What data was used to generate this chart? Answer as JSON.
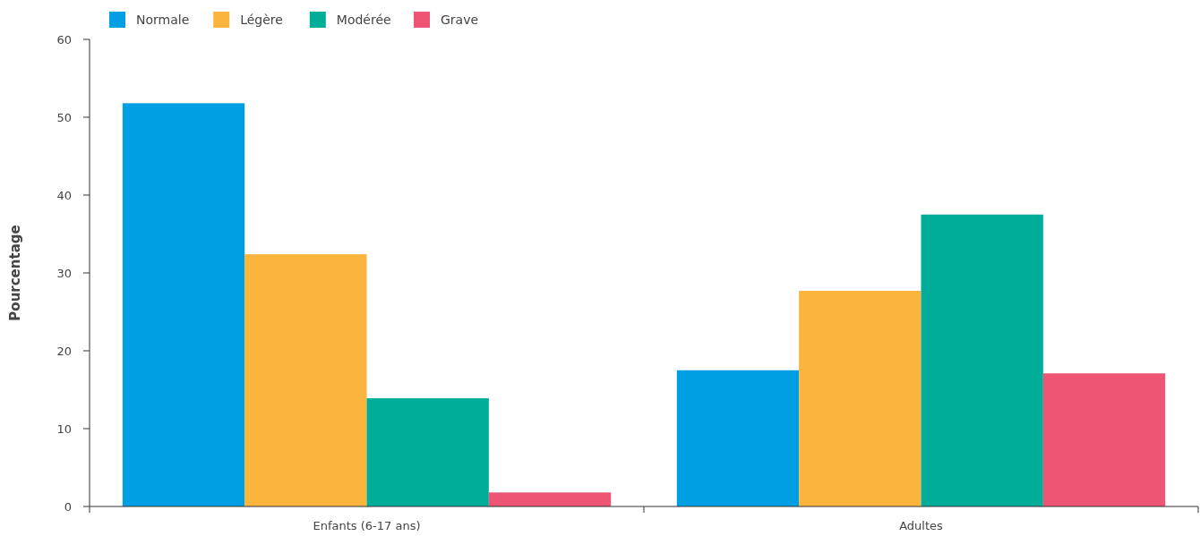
{
  "chart_data": {
    "type": "bar",
    "ylabel": "Pourcentage",
    "categories": [
      "Enfants (6-17 ans)",
      "Adultes"
    ],
    "series": [
      {
        "name": "Normale",
        "color": "#009fe3",
        "values": [
          51.8,
          17.5
        ]
      },
      {
        "name": "Légère",
        "color": "#fbb43c",
        "values": [
          32.4,
          27.7
        ]
      },
      {
        "name": "Modérée",
        "color": "#00ad98",
        "values": [
          13.9,
          37.5
        ]
      },
      {
        "name": "Grave",
        "color": "#ee5574",
        "values": [
          1.8,
          17.1
        ]
      }
    ],
    "ylim": [
      0,
      60
    ],
    "yticks": [
      0,
      10,
      20,
      30,
      40,
      50,
      60
    ],
    "grid": false,
    "legend": "top left"
  }
}
